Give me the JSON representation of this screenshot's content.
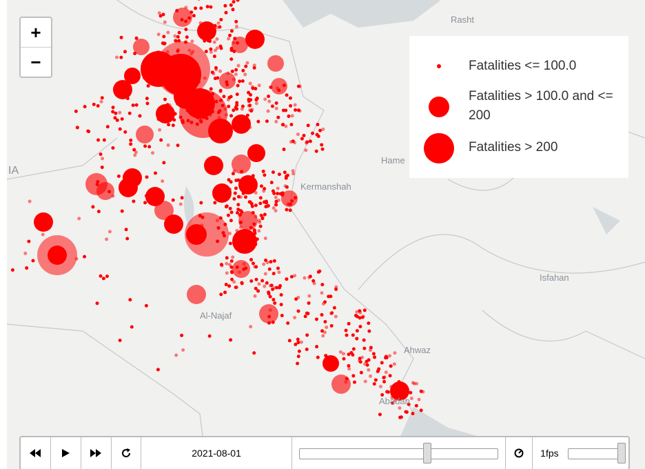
{
  "cities": [
    "Rasht",
    "Hame",
    "Kermanshah",
    "Isfahan",
    "Al-Najaf",
    "Ahwaz",
    "Abadan",
    "IA"
  ],
  "zoom": {
    "in": "+",
    "out": "−"
  },
  "legend": [
    "Fatalities <= 100.0",
    "Fatalities > 100.0 and <= 200",
    "Fatalities > 200"
  ],
  "controls": {
    "date": "2021-08-01",
    "speed": "1fps"
  }
}
